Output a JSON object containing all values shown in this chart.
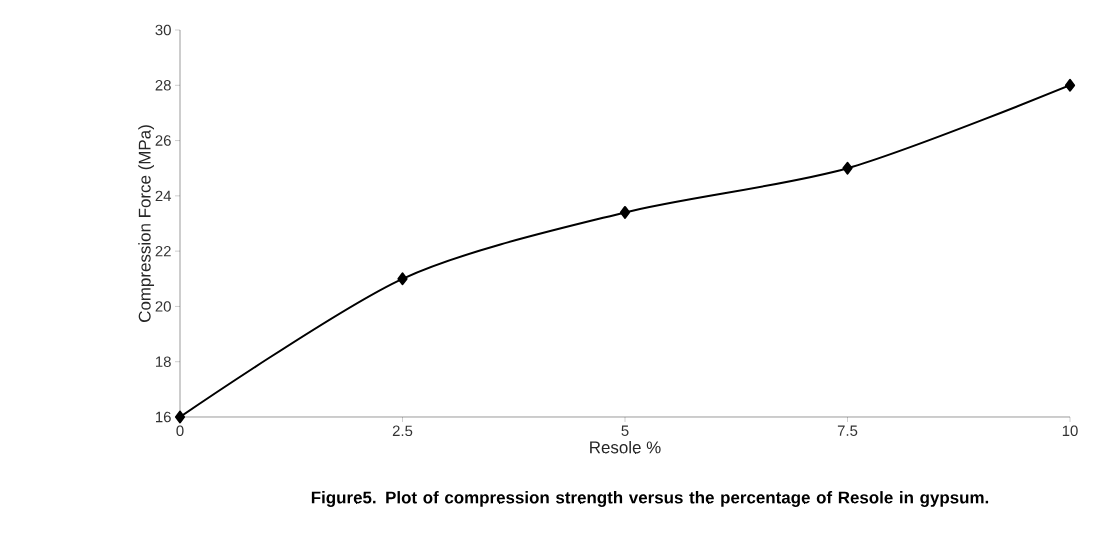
{
  "chart_data": {
    "type": "line",
    "xlabel": "Resole %",
    "ylabel": "Compression Force (MPa)",
    "x": [
      0,
      2.5,
      5,
      7.5,
      10
    ],
    "series": [
      {
        "color": "#000000",
        "values": [
          16,
          21,
          23.4,
          25,
          28
        ]
      }
    ],
    "xlim": [
      0,
      10
    ],
    "xticks": [
      0,
      2.5,
      5,
      7.5,
      10
    ],
    "ylim": [
      16,
      30
    ],
    "yticks": [
      16,
      18,
      20,
      22,
      24,
      26,
      28,
      30
    ],
    "grid": false,
    "marker": "diamond",
    "line_style": "solid",
    "annotations": [
      "Figure5. Plot of compression strength versus the percentage of Resole in gypsum."
    ]
  }
}
